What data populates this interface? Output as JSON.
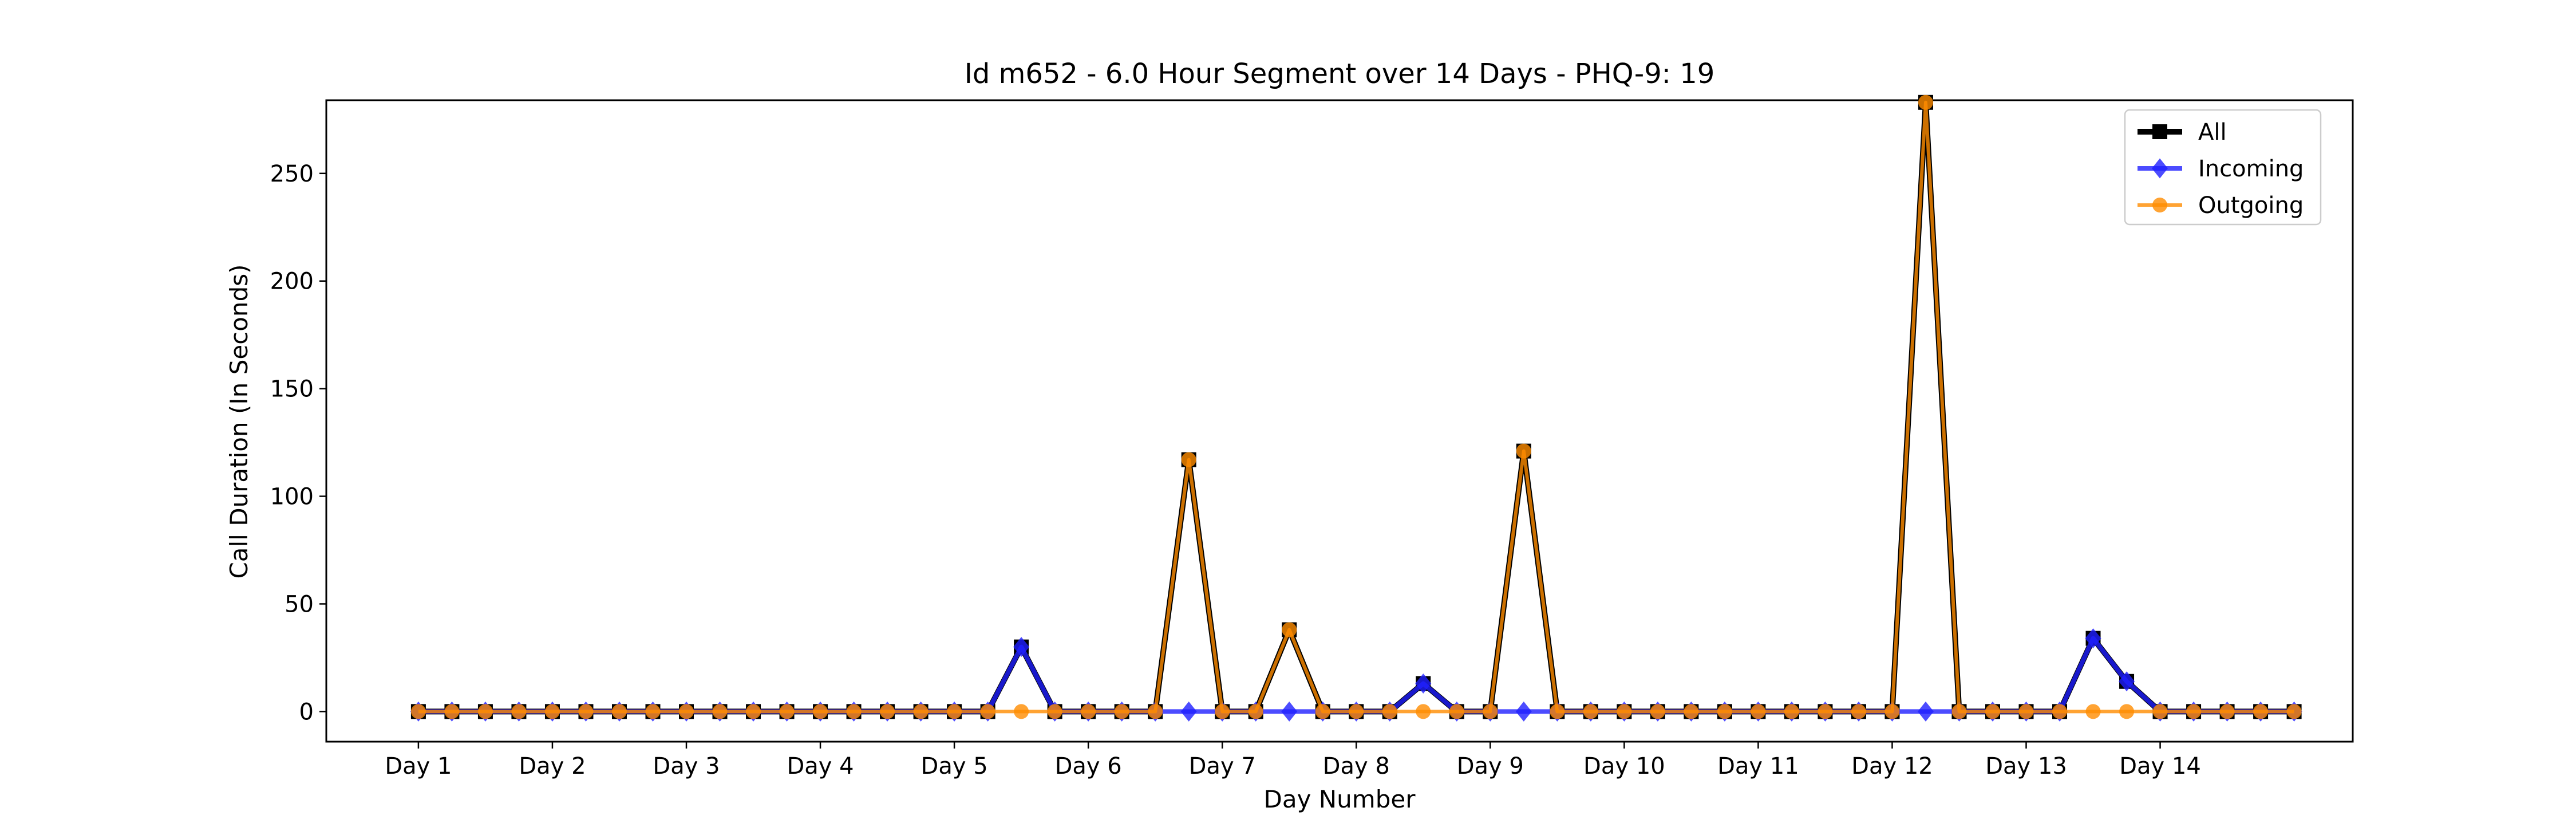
{
  "chart_data": {
    "type": "line",
    "title": "Id m652 - 6.0 Hour Segment over 14 Days - PHQ-9: 19",
    "xlabel": "Day Number",
    "ylabel": "Call Duration (In Seconds)",
    "x_tick_labels": [
      "Day 1",
      "Day 2",
      "Day 3",
      "Day 4",
      "Day 5",
      "Day 6",
      "Day 7",
      "Day 8",
      "Day 9",
      "Day 10",
      "Day 11",
      "Day 12",
      "Day 13",
      "Day 14"
    ],
    "segments_per_day": 4,
    "y_ticks": [
      0,
      50,
      100,
      150,
      200,
      250
    ],
    "ylim": [
      -14,
      284
    ],
    "xlim": [
      -2.75,
      57.75
    ],
    "grid": false,
    "legend_position": "top-right",
    "series": [
      {
        "name": "All",
        "color": "#000000",
        "marker": "square",
        "values": [
          0,
          0,
          0,
          0,
          0,
          0,
          0,
          0,
          0,
          0,
          0,
          0,
          0,
          0,
          0,
          0,
          0,
          0,
          30,
          0,
          0,
          0,
          0,
          117,
          0,
          0,
          38,
          0,
          0,
          0,
          13,
          0,
          0,
          121,
          0,
          0,
          0,
          0,
          0,
          0,
          0,
          0,
          0,
          0,
          0,
          283,
          0,
          0,
          0,
          0,
          34,
          14,
          0,
          0,
          0,
          0,
          0
        ]
      },
      {
        "name": "Incoming",
        "color": "#1f1fff",
        "marker": "diamond",
        "values": [
          0,
          0,
          0,
          0,
          0,
          0,
          0,
          0,
          0,
          0,
          0,
          0,
          0,
          0,
          0,
          0,
          0,
          0,
          30,
          0,
          0,
          0,
          0,
          0,
          0,
          0,
          0,
          0,
          0,
          0,
          13,
          0,
          0,
          0,
          0,
          0,
          0,
          0,
          0,
          0,
          0,
          0,
          0,
          0,
          0,
          0,
          0,
          0,
          0,
          0,
          34,
          14,
          0,
          0,
          0,
          0,
          0
        ]
      },
      {
        "name": "Outgoing",
        "color": "#ff8c00",
        "marker": "circle",
        "values": [
          0,
          0,
          0,
          0,
          0,
          0,
          0,
          0,
          0,
          0,
          0,
          0,
          0,
          0,
          0,
          0,
          0,
          0,
          0,
          0,
          0,
          0,
          0,
          117,
          0,
          0,
          38,
          0,
          0,
          0,
          0,
          0,
          0,
          121,
          0,
          0,
          0,
          0,
          0,
          0,
          0,
          0,
          0,
          0,
          0,
          283,
          0,
          0,
          0,
          0,
          0,
          0,
          0,
          0,
          0,
          0,
          0
        ]
      }
    ]
  }
}
